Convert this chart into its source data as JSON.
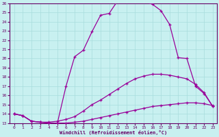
{
  "xlabel": "Windchill (Refroidissement éolien,°C)",
  "background_color": "#c8f0f0",
  "line_color": "#990099",
  "grid_color": "#a8dcdc",
  "spine_color": "#660066",
  "tick_color": "#660066",
  "xlim": [
    0,
    23
  ],
  "ylim": [
    13,
    26
  ],
  "xticks": [
    0,
    1,
    2,
    3,
    4,
    5,
    6,
    7,
    8,
    9,
    10,
    11,
    12,
    13,
    14,
    15,
    16,
    17,
    18,
    19,
    20,
    21,
    22,
    23
  ],
  "yticks": [
    13,
    14,
    15,
    16,
    17,
    18,
    19,
    20,
    21,
    22,
    23,
    24,
    25,
    26
  ],
  "curve1_x": [
    0,
    1,
    2,
    3,
    4,
    5,
    6,
    7,
    8,
    9,
    10,
    11,
    12,
    13,
    14,
    15,
    16,
    17,
    18,
    19,
    20,
    21,
    22,
    23
  ],
  "curve1_y": [
    14.0,
    13.8,
    13.2,
    13.1,
    13.0,
    13.0,
    17.0,
    20.2,
    20.9,
    22.9,
    24.7,
    24.9,
    26.3,
    26.2,
    26.2,
    26.2,
    25.9,
    25.2,
    23.7,
    20.1,
    20.0,
    17.0,
    16.2,
    14.8
  ],
  "curve2_x": [
    0,
    1,
    2,
    3,
    4,
    5,
    6,
    7,
    8,
    9,
    10,
    11,
    12,
    13,
    14,
    15,
    16,
    17,
    18,
    19,
    20,
    21,
    22,
    23
  ],
  "curve2_y": [
    14.0,
    13.8,
    13.2,
    13.1,
    13.1,
    13.2,
    13.4,
    13.7,
    14.3,
    15.0,
    15.5,
    16.1,
    16.7,
    17.3,
    17.8,
    18.1,
    18.3,
    18.3,
    18.2,
    18.0,
    17.8,
    17.2,
    16.3,
    14.8
  ],
  "curve3_x": [
    0,
    1,
    2,
    3,
    4,
    5,
    6,
    7,
    8,
    9,
    10,
    11,
    12,
    13,
    14,
    15,
    16,
    17,
    18,
    19,
    20,
    21,
    22,
    23
  ],
  "curve3_y": [
    14.0,
    13.8,
    13.2,
    13.1,
    13.0,
    13.0,
    13.0,
    13.1,
    13.2,
    13.4,
    13.6,
    13.8,
    14.0,
    14.2,
    14.4,
    14.6,
    14.8,
    14.9,
    15.0,
    15.1,
    15.2,
    15.2,
    15.1,
    14.9
  ],
  "tick_fontsize": 4.5,
  "label_fontsize": 5.0
}
